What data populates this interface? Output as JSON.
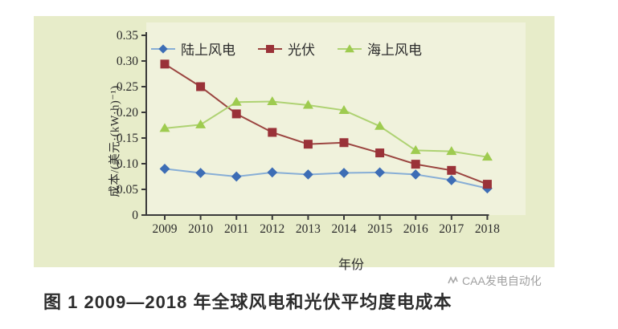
{
  "caption": {
    "text": "图 1  2009—2018 年全球风电和光伏平均度电成本"
  },
  "watermark": {
    "text": "CAA发电自动化"
  },
  "colors": {
    "panel_bg": "#e7ecc9",
    "plot_bg": "#f0f2dc",
    "axis": "#3a3a3a",
    "tick_text": "#2b2b2b",
    "caption_text": "#2d2d2d",
    "watermark_text": "#a0a0a0"
  },
  "chart_data": {
    "type": "line",
    "title": "",
    "xlabel": "年份",
    "ylabel": "成本/(美元·(kW·h)⁻¹)",
    "categories": [
      "2009",
      "2010",
      "2011",
      "2012",
      "2013",
      "2014",
      "2015",
      "2016",
      "2017",
      "2018"
    ],
    "ylim": [
      0,
      0.35
    ],
    "y_ticks": [
      0,
      0.05,
      0.1,
      0.15,
      0.2,
      0.25,
      0.3,
      0.35
    ],
    "grid": false,
    "legend_position": "top-inside",
    "series": [
      {
        "name": "陆上风电",
        "marker": "diamond",
        "marker_color": "#3d6db5",
        "line_color": "#87aed6",
        "values": [
          0.09,
          0.082,
          0.075,
          0.083,
          0.079,
          0.082,
          0.083,
          0.079,
          0.068,
          0.052
        ]
      },
      {
        "name": "光伏",
        "marker": "square",
        "marker_color": "#9a3238",
        "line_color": "#9b4540",
        "values": [
          0.294,
          0.25,
          0.197,
          0.161,
          0.138,
          0.141,
          0.121,
          0.099,
          0.087,
          0.06
        ]
      },
      {
        "name": "海上风电",
        "marker": "triangle",
        "marker_color": "#9ecb4f",
        "line_color": "#aed272",
        "values": [
          0.169,
          0.176,
          0.22,
          0.221,
          0.214,
          0.204,
          0.173,
          0.126,
          0.124,
          0.113
        ]
      }
    ]
  }
}
